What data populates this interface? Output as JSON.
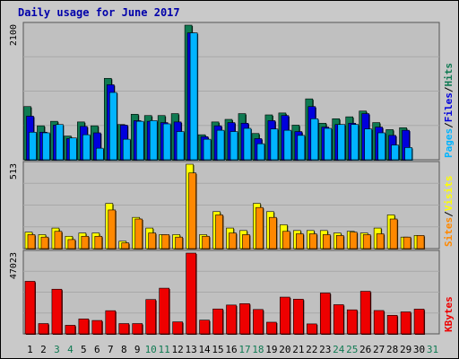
{
  "title": "Daily usage for June 2017",
  "colors": {
    "background": "#c9c9c9",
    "plot_bg": "#c0c0c0",
    "title": "#0000aa",
    "hits": "#0f7a52",
    "files": "#0000dd",
    "pages": "#00b4ff",
    "visits": "#ffff00",
    "sites": "#ff8800",
    "kbytes": "#ee0000",
    "weekend_day": "#0f7a52",
    "weekday": "#000000"
  },
  "chart_data": [
    {
      "type": "bar",
      "panel": "top",
      "ymax_label": "2100",
      "ylim": [
        0,
        2100
      ],
      "legend_vertical": [
        "Pages",
        "/",
        "Files",
        "/",
        "Hits"
      ],
      "categories": [
        "1",
        "2",
        "3",
        "4",
        "5",
        "6",
        "7",
        "8",
        "9",
        "10",
        "11",
        "12",
        "13",
        "14",
        "15",
        "16",
        "17",
        "18",
        "19",
        "20",
        "21",
        "22",
        "23",
        "24",
        "25",
        "26",
        "27",
        "28",
        "29",
        "30",
        "31"
      ],
      "weekend_days": [
        3,
        4,
        10,
        11,
        17,
        18,
        24,
        25,
        31
      ],
      "series": [
        {
          "name": "Hits",
          "values": [
            830,
            530,
            600,
            370,
            590,
            530,
            1270,
            550,
            710,
            690,
            690,
            720,
            2100,
            390,
            590,
            630,
            720,
            410,
            700,
            730,
            540,
            950,
            570,
            640,
            670,
            760,
            580,
            470,
            500,
            0,
            0
          ]
        },
        {
          "name": "Files",
          "values": [
            680,
            430,
            540,
            330,
            520,
            420,
            1170,
            540,
            610,
            600,
            580,
            590,
            1980,
            360,
            530,
            580,
            570,
            330,
            610,
            690,
            440,
            830,
            510,
            550,
            570,
            720,
            510,
            380,
            460,
            0,
            0
          ]
        },
        {
          "name": "Pages",
          "values": [
            430,
            420,
            550,
            340,
            390,
            180,
            1050,
            320,
            600,
            610,
            560,
            440,
            1980,
            320,
            460,
            440,
            490,
            250,
            480,
            460,
            380,
            640,
            490,
            550,
            550,
            480,
            420,
            230,
            190,
            0,
            0
          ]
        }
      ]
    },
    {
      "type": "bar",
      "panel": "middle",
      "ymax_label": "513",
      "ylim": [
        0,
        513
      ],
      "legend_vertical": [
        "Sites",
        "/",
        "Visits"
      ],
      "categories": [
        "1",
        "2",
        "3",
        "4",
        "5",
        "6",
        "7",
        "8",
        "9",
        "10",
        "11",
        "12",
        "13",
        "14",
        "15",
        "16",
        "17",
        "18",
        "19",
        "20",
        "21",
        "22",
        "23",
        "24",
        "25",
        "26",
        "27",
        "28",
        "29",
        "30",
        "31"
      ],
      "series": [
        {
          "name": "Visits",
          "values": [
            100,
            85,
            125,
            75,
            95,
            95,
            275,
            45,
            190,
            125,
            85,
            85,
            513,
            85,
            225,
            125,
            110,
            275,
            225,
            145,
            110,
            110,
            110,
            95,
            105,
            95,
            125,
            205,
            70,
            80,
            0
          ]
        },
        {
          "name": "Sites",
          "values": [
            85,
            70,
            105,
            55,
            75,
            75,
            235,
            35,
            180,
            95,
            85,
            70,
            460,
            75,
            205,
            95,
            85,
            250,
            190,
            105,
            90,
            90,
            85,
            80,
            100,
            85,
            90,
            180,
            70,
            80,
            0
          ]
        }
      ]
    },
    {
      "type": "bar",
      "panel": "bottom",
      "ymax_label": "47023",
      "ylim": [
        0,
        47023
      ],
      "legend_vertical": [
        "KBytes"
      ],
      "categories": [
        "1",
        "2",
        "3",
        "4",
        "5",
        "6",
        "7",
        "8",
        "9",
        "10",
        "11",
        "12",
        "13",
        "14",
        "15",
        "16",
        "17",
        "18",
        "19",
        "20",
        "21",
        "22",
        "23",
        "24",
        "25",
        "26",
        "27",
        "28",
        "29",
        "30",
        "31"
      ],
      "series": [
        {
          "name": "KBytes",
          "values": [
            30600,
            6000,
            26000,
            5000,
            8700,
            7800,
            13500,
            6000,
            6000,
            20000,
            26600,
            7000,
            47023,
            8000,
            14500,
            16800,
            17600,
            14200,
            6800,
            21400,
            20200,
            5800,
            23800,
            17000,
            14000,
            24800,
            13600,
            10800,
            12800,
            14400,
            0
          ]
        }
      ]
    }
  ]
}
